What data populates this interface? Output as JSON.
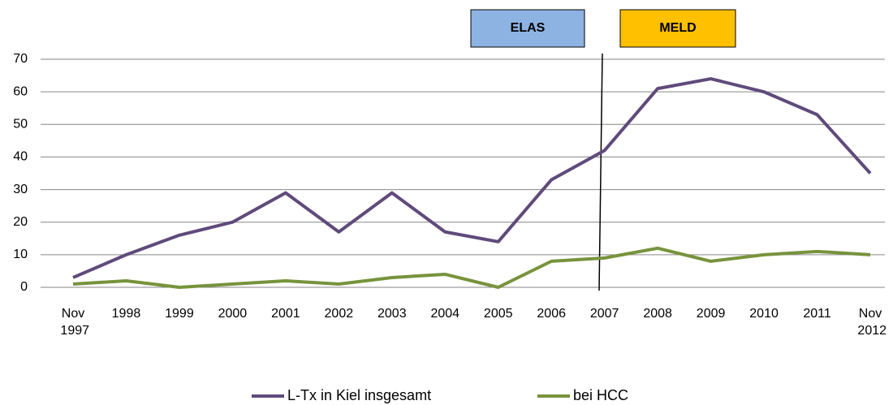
{
  "chart_data": {
    "type": "line",
    "categories": [
      "Nov 1997",
      "1998",
      "1999",
      "2000",
      "2001",
      "2002",
      "2003",
      "2004",
      "2005",
      "2006",
      "2007",
      "2008",
      "2009",
      "2010",
      "2011",
      "Nov 2012"
    ],
    "series": [
      {
        "name": "L-Tx in Kiel insgesamt",
        "color": "#604a7b",
        "values": [
          3,
          10,
          16,
          20,
          29,
          17,
          29,
          17,
          14,
          33,
          42,
          61,
          64,
          60,
          53,
          35
        ]
      },
      {
        "name": "bei HCC",
        "color": "#77933c",
        "values": [
          1,
          2,
          0,
          1,
          2,
          1,
          3,
          4,
          0,
          8,
          9,
          12,
          8,
          10,
          11,
          10
        ]
      }
    ],
    "ylim": [
      0,
      70
    ],
    "yticks": [
      0,
      10,
      20,
      30,
      40,
      50,
      60,
      70
    ],
    "grid": true,
    "legend": "bottom",
    "annotations": [
      "ELAS",
      "MELD"
    ]
  }
}
